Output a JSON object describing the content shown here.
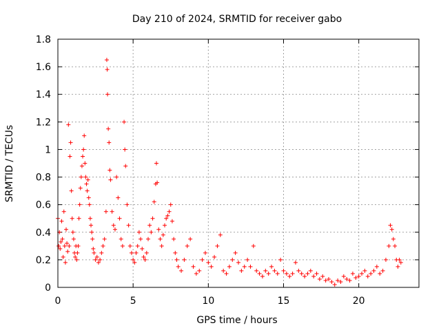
{
  "page": {
    "background": "#ffffff"
  },
  "chart_data": {
    "type": "scatter",
    "title": "Day 210 of 2024, SRMTID for receiver gabo",
    "xlabel": "GPS time / hours",
    "ylabel": "SRMTID / TECUs",
    "xlim": [
      0,
      24
    ],
    "ylim": [
      0,
      1.8
    ],
    "grid": true,
    "legend": "none",
    "x_ticks": [
      0,
      5,
      10,
      15,
      20
    ],
    "x_tick_labels": [
      "0",
      "5",
      "10",
      "15",
      "20"
    ],
    "y_ticks": [
      0,
      0.2,
      0.4,
      0.6,
      0.8,
      1.0,
      1.2,
      1.4,
      1.6,
      1.8
    ],
    "y_tick_labels": [
      "0",
      "0.2",
      "0.4",
      "0.6",
      "0.8",
      "1",
      "1.2",
      "1.4",
      "1.6",
      "1.8"
    ],
    "marker": "+",
    "color": "#ff0000",
    "series": [
      {
        "name": "SRMTID",
        "points": [
          [
            0.0,
            0.5
          ],
          [
            0.05,
            0.3
          ],
          [
            0.1,
            0.4
          ],
          [
            0.15,
            0.28
          ],
          [
            0.2,
            0.33
          ],
          [
            0.25,
            0.48
          ],
          [
            0.3,
            0.35
          ],
          [
            0.35,
            0.22
          ],
          [
            0.4,
            0.55
          ],
          [
            0.45,
            0.3
          ],
          [
            0.5,
            0.18
          ],
          [
            0.55,
            0.42
          ],
          [
            0.6,
            0.32
          ],
          [
            0.65,
            0.26
          ],
          [
            0.7,
            1.18
          ],
          [
            0.75,
            0.3
          ],
          [
            0.8,
            0.95
          ],
          [
            0.85,
            1.05
          ],
          [
            0.9,
            0.7
          ],
          [
            0.95,
            0.5
          ],
          [
            1.0,
            0.4
          ],
          [
            1.05,
            0.35
          ],
          [
            1.1,
            0.25
          ],
          [
            1.15,
            0.22
          ],
          [
            1.2,
            0.3
          ],
          [
            1.25,
            0.2
          ],
          [
            1.3,
            0.25
          ],
          [
            1.35,
            0.3
          ],
          [
            1.4,
            0.5
          ],
          [
            1.45,
            0.6
          ],
          [
            1.5,
            0.72
          ],
          [
            1.55,
            0.8
          ],
          [
            1.6,
            0.88
          ],
          [
            1.65,
            0.95
          ],
          [
            1.7,
            1.0
          ],
          [
            1.75,
            1.1
          ],
          [
            1.8,
            0.9
          ],
          [
            1.85,
            0.8
          ],
          [
            1.9,
            0.75
          ],
          [
            1.95,
            0.7
          ],
          [
            2.0,
            0.78
          ],
          [
            2.05,
            0.65
          ],
          [
            2.1,
            0.6
          ],
          [
            2.15,
            0.5
          ],
          [
            2.2,
            0.45
          ],
          [
            2.25,
            0.4
          ],
          [
            2.3,
            0.35
          ],
          [
            2.35,
            0.28
          ],
          [
            2.4,
            0.25
          ],
          [
            2.5,
            0.2
          ],
          [
            2.6,
            0.22
          ],
          [
            2.7,
            0.18
          ],
          [
            2.8,
            0.2
          ],
          [
            2.9,
            0.25
          ],
          [
            3.0,
            0.3
          ],
          [
            3.1,
            0.35
          ],
          [
            3.2,
            0.55
          ],
          [
            3.25,
            1.65
          ],
          [
            3.28,
            1.58
          ],
          [
            3.3,
            1.4
          ],
          [
            3.35,
            1.15
          ],
          [
            3.4,
            1.05
          ],
          [
            3.45,
            0.85
          ],
          [
            3.5,
            0.78
          ],
          [
            3.6,
            0.55
          ],
          [
            3.7,
            0.45
          ],
          [
            3.8,
            0.42
          ],
          [
            3.9,
            0.8
          ],
          [
            4.0,
            0.65
          ],
          [
            4.1,
            0.5
          ],
          [
            4.2,
            0.35
          ],
          [
            4.3,
            0.3
          ],
          [
            4.4,
            1.2
          ],
          [
            4.45,
            1.0
          ],
          [
            4.5,
            0.88
          ],
          [
            4.6,
            0.6
          ],
          [
            4.7,
            0.45
          ],
          [
            4.8,
            0.3
          ],
          [
            4.9,
            0.25
          ],
          [
            5.0,
            0.2
          ],
          [
            5.1,
            0.18
          ],
          [
            5.2,
            0.25
          ],
          [
            5.3,
            0.3
          ],
          [
            5.4,
            0.4
          ],
          [
            5.5,
            0.35
          ],
          [
            5.6,
            0.28
          ],
          [
            5.7,
            0.22
          ],
          [
            5.8,
            0.2
          ],
          [
            5.9,
            0.25
          ],
          [
            6.0,
            0.35
          ],
          [
            6.1,
            0.45
          ],
          [
            6.2,
            0.4
          ],
          [
            6.3,
            0.5
          ],
          [
            6.4,
            0.62
          ],
          [
            6.5,
            0.75
          ],
          [
            6.55,
            0.9
          ],
          [
            6.6,
            0.76
          ],
          [
            6.7,
            0.42
          ],
          [
            6.8,
            0.35
          ],
          [
            6.9,
            0.3
          ],
          [
            7.0,
            0.38
          ],
          [
            7.1,
            0.45
          ],
          [
            7.2,
            0.5
          ],
          [
            7.3,
            0.52
          ],
          [
            7.4,
            0.55
          ],
          [
            7.5,
            0.6
          ],
          [
            7.6,
            0.48
          ],
          [
            7.7,
            0.35
          ],
          [
            7.8,
            0.25
          ],
          [
            7.9,
            0.2
          ],
          [
            8.0,
            0.15
          ],
          [
            8.2,
            0.12
          ],
          [
            8.4,
            0.2
          ],
          [
            8.6,
            0.3
          ],
          [
            8.8,
            0.35
          ],
          [
            9.0,
            0.15
          ],
          [
            9.2,
            0.1
          ],
          [
            9.4,
            0.12
          ],
          [
            9.6,
            0.2
          ],
          [
            9.8,
            0.25
          ],
          [
            10.0,
            0.18
          ],
          [
            10.2,
            0.15
          ],
          [
            10.4,
            0.22
          ],
          [
            10.6,
            0.3
          ],
          [
            10.8,
            0.38
          ],
          [
            11.0,
            0.12
          ],
          [
            11.2,
            0.1
          ],
          [
            11.4,
            0.15
          ],
          [
            11.6,
            0.2
          ],
          [
            11.8,
            0.25
          ],
          [
            12.0,
            0.18
          ],
          [
            12.2,
            0.12
          ],
          [
            12.4,
            0.15
          ],
          [
            12.6,
            0.2
          ],
          [
            12.8,
            0.15
          ],
          [
            13.0,
            0.3
          ],
          [
            13.2,
            0.12
          ],
          [
            13.4,
            0.1
          ],
          [
            13.6,
            0.08
          ],
          [
            13.8,
            0.12
          ],
          [
            14.0,
            0.1
          ],
          [
            14.2,
            0.15
          ],
          [
            14.4,
            0.12
          ],
          [
            14.6,
            0.1
          ],
          [
            14.8,
            0.2
          ],
          [
            15.0,
            0.12
          ],
          [
            15.2,
            0.1
          ],
          [
            15.4,
            0.08
          ],
          [
            15.6,
            0.1
          ],
          [
            15.8,
            0.18
          ],
          [
            16.0,
            0.12
          ],
          [
            16.2,
            0.1
          ],
          [
            16.4,
            0.08
          ],
          [
            16.6,
            0.1
          ],
          [
            16.8,
            0.12
          ],
          [
            17.0,
            0.08
          ],
          [
            17.2,
            0.1
          ],
          [
            17.4,
            0.06
          ],
          [
            17.6,
            0.08
          ],
          [
            17.8,
            0.05
          ],
          [
            18.0,
            0.06
          ],
          [
            18.2,
            0.04
          ],
          [
            18.4,
            0.02
          ],
          [
            18.6,
            0.05
          ],
          [
            18.8,
            0.04
          ],
          [
            19.0,
            0.08
          ],
          [
            19.2,
            0.06
          ],
          [
            19.4,
            0.05
          ],
          [
            19.6,
            0.1
          ],
          [
            19.8,
            0.07
          ],
          [
            20.0,
            0.08
          ],
          [
            20.2,
            0.1
          ],
          [
            20.4,
            0.12
          ],
          [
            20.6,
            0.08
          ],
          [
            20.8,
            0.1
          ],
          [
            21.0,
            0.12
          ],
          [
            21.2,
            0.15
          ],
          [
            21.4,
            0.1
          ],
          [
            21.6,
            0.12
          ],
          [
            21.8,
            0.2
          ],
          [
            22.0,
            0.3
          ],
          [
            22.1,
            0.45
          ],
          [
            22.2,
            0.42
          ],
          [
            22.3,
            0.35
          ],
          [
            22.4,
            0.3
          ],
          [
            22.5,
            0.2
          ],
          [
            22.6,
            0.15
          ],
          [
            22.7,
            0.2
          ],
          [
            22.8,
            0.18
          ]
        ]
      }
    ]
  }
}
